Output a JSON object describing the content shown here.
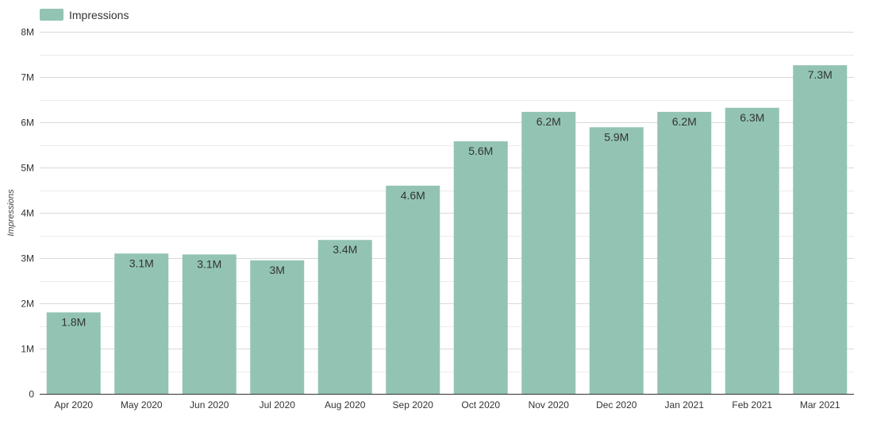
{
  "chart_data": {
    "type": "bar",
    "legend": {
      "label": "Impressions",
      "position": "top-left"
    },
    "ylabel": "Impressions",
    "xlabel": "",
    "ylim": [
      0,
      8000000
    ],
    "y_ticks": [
      {
        "value": 0,
        "label": "0"
      },
      {
        "value": 1000000,
        "label": "1M"
      },
      {
        "value": 2000000,
        "label": "2M"
      },
      {
        "value": 3000000,
        "label": "3M"
      },
      {
        "value": 4000000,
        "label": "4M"
      },
      {
        "value": 5000000,
        "label": "5M"
      },
      {
        "value": 6000000,
        "label": "6M"
      },
      {
        "value": 7000000,
        "label": "7M"
      },
      {
        "value": 8000000,
        "label": "8M"
      }
    ],
    "grid": true,
    "categories": [
      "Apr 2020",
      "May 2020",
      "Jun 2020",
      "Jul 2020",
      "Aug 2020",
      "Sep 2020",
      "Oct 2020",
      "Nov 2020",
      "Dec 2020",
      "Jan 2021",
      "Feb 2021",
      "Mar 2021"
    ],
    "series": [
      {
        "name": "Impressions",
        "color": "#93c4b3",
        "values": [
          1800000,
          3100000,
          3080000,
          2950000,
          3400000,
          4600000,
          5580000,
          6230000,
          5890000,
          6230000,
          6320000,
          7260000
        ],
        "data_labels": [
          "1.8M",
          "3.1M",
          "3.1M",
          "3M",
          "3.4M",
          "4.6M",
          "5.6M",
          "6.2M",
          "5.9M",
          "6.2M",
          "6.3M",
          "7.3M"
        ]
      }
    ],
    "colors": {
      "bar": "#93c4b3",
      "grid_major": "#d9d9d9",
      "grid_minor": "#ececec",
      "axis": "#333333",
      "tick_text": "#333333",
      "data_label_text": "#333333"
    }
  }
}
